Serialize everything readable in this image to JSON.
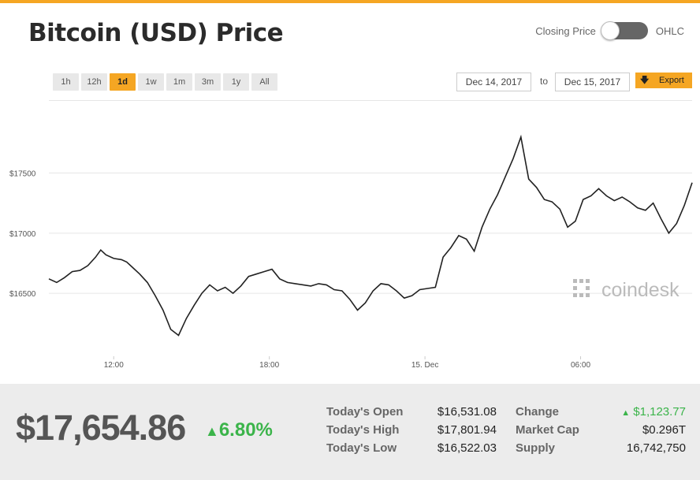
{
  "title": "Bitcoin (USD) Price",
  "toggle": {
    "left_label": "Closing Price",
    "right_label": "OHLC"
  },
  "ranges": [
    "1h",
    "12h",
    "1d",
    "1w",
    "1m",
    "3m",
    "1y",
    "All"
  ],
  "active_range": "1d",
  "date_from": "Dec 14, 2017",
  "date_to": "Dec 15, 2017",
  "to_label": "to",
  "export_label": "Export",
  "watermark": "coindesk",
  "colors": {
    "accent": "#f5a623",
    "line": "#222222",
    "positive": "#3bb44a"
  },
  "chart_data": {
    "type": "line",
    "title": "",
    "xlabel": "",
    "ylabel": "",
    "x_ticks": [
      "12:00",
      "18:00",
      "15. Dec",
      "06:00"
    ],
    "y_ticks": [
      "$16500",
      "$17000",
      "$17500"
    ],
    "y_tick_values": [
      16500,
      17000,
      17500
    ],
    "ylim": [
      15950,
      18100
    ],
    "x_unit": "hours since Dec 14 09:30",
    "series": [
      {
        "name": "",
        "x": [
          0,
          0.3,
          0.6,
          0.9,
          1.2,
          1.5,
          1.8,
          2.0,
          2.2,
          2.5,
          2.8,
          3.0,
          3.2,
          3.5,
          3.8,
          4.1,
          4.4,
          4.7,
          5.0,
          5.3,
          5.6,
          5.9,
          6.2,
          6.5,
          6.8,
          7.1,
          7.4,
          7.7,
          8.0,
          8.3,
          8.6,
          8.9,
          9.2,
          9.5,
          9.8,
          10.1,
          10.4,
          10.7,
          11.0,
          11.3,
          11.6,
          11.9,
          12.2,
          12.5,
          12.8,
          13.1,
          13.4,
          13.7,
          14.0,
          14.3,
          14.6,
          14.9,
          15.2,
          15.5,
          15.8,
          16.1,
          16.4,
          16.7,
          17.0,
          17.3,
          17.6,
          17.9,
          18.2,
          18.5,
          18.8,
          19.1,
          19.4,
          19.7,
          20.0,
          20.3,
          20.6,
          20.9,
          21.2,
          21.5,
          21.8,
          22.1,
          22.4,
          22.7,
          23.0,
          23.3,
          23.6,
          23.9,
          24.2,
          24.5,
          24.8
        ],
        "y": [
          16620,
          16590,
          16630,
          16680,
          16690,
          16730,
          16800,
          16860,
          16820,
          16790,
          16780,
          16760,
          16720,
          16660,
          16590,
          16480,
          16360,
          16200,
          16150,
          16290,
          16400,
          16500,
          16570,
          16520,
          16550,
          16500,
          16560,
          16640,
          16660,
          16680,
          16700,
          16620,
          16590,
          16580,
          16570,
          16560,
          16580,
          16570,
          16530,
          16520,
          16450,
          16360,
          16420,
          16520,
          16580,
          16570,
          16520,
          16460,
          16480,
          16530,
          16540,
          16550,
          16800,
          16880,
          16980,
          16950,
          16850,
          17050,
          17200,
          17320,
          17470,
          17620,
          17800,
          17450,
          17380,
          17280,
          17260,
          17200,
          17050,
          17100,
          17280,
          17310,
          17370,
          17310,
          17270,
          17300,
          17260,
          17210,
          17190,
          17250,
          17120,
          17000,
          17080,
          17230,
          17420
        ]
      }
    ],
    "grid": "horizontal",
    "legend": "none"
  },
  "summary": {
    "price": "$17,654.86",
    "change_pct": "6.80%",
    "stats": [
      {
        "label": "Today's Open",
        "value": "$16,531.08",
        "label2": "Change",
        "value2": "$1,123.77"
      },
      {
        "label": "Today's High",
        "value": "$17,801.94",
        "label2": "Market Cap",
        "value2": "$0.296T"
      },
      {
        "label": "Today's Low",
        "value": "$16,522.03",
        "label2": "Supply",
        "value2": "16,742,750"
      }
    ]
  }
}
